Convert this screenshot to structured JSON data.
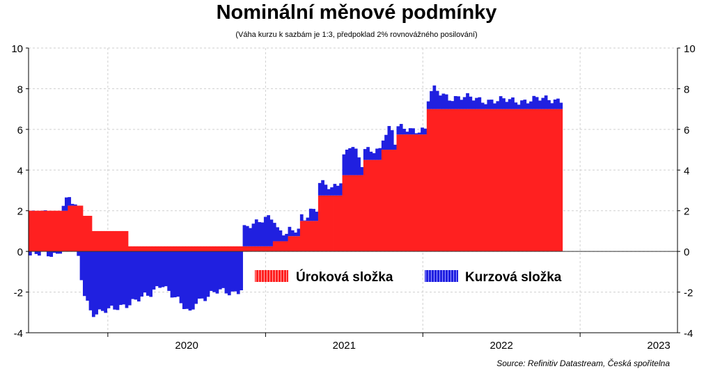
{
  "chart_data": {
    "type": "bar",
    "title": "Nominální měnové podmínky",
    "subtitle": "(Váha kurzu k sazbám je 1:3, předpoklad 2% rovnovážného posilování)",
    "source": "Source: Refinitiv Datastream, Česká spořitelna",
    "ylim": [
      -4,
      10
    ],
    "yticks": [
      -4,
      -2,
      0,
      2,
      4,
      6,
      8,
      10
    ],
    "x_range": [
      "2019-07-01",
      "2023-08-15"
    ],
    "x_tick_labels": [
      "2020",
      "2021",
      "2022",
      "2023"
    ],
    "grid": true,
    "legend_position": "inside-center",
    "colors": {
      "interest": "#ff2020",
      "exchange": "#2020e0"
    },
    "series": [
      {
        "name": "Úroková složka",
        "points": [
          [
            "2019-07-01",
            2.0
          ],
          [
            "2019-09-27",
            2.25
          ],
          [
            "2019-11-01",
            1.75
          ],
          [
            "2019-11-20",
            1.0
          ],
          [
            "2020-02-10",
            0.25
          ],
          [
            "2020-09-20",
            0.25
          ],
          [
            "2021-01-15",
            0.5
          ],
          [
            "2021-02-20",
            0.75
          ],
          [
            "2021-03-20",
            1.5
          ],
          [
            "2021-05-01",
            2.75
          ],
          [
            "2021-06-25",
            3.75
          ],
          [
            "2021-08-10",
            4.5
          ],
          [
            "2021-09-25",
            5.0
          ],
          [
            "2021-10-25",
            5.75
          ],
          [
            "2022-01-05",
            7.0
          ],
          [
            "2022-11-20",
            7.0
          ]
        ]
      },
      {
        "name": "Kurzová složka",
        "points": [
          [
            "2019-07-01",
            -0.2
          ],
          [
            "2019-09-01",
            -0.1
          ],
          [
            "2019-09-25",
            0.55
          ],
          [
            "2019-10-20",
            -0.3
          ],
          [
            "2019-11-01",
            -1.9
          ],
          [
            "2019-11-20",
            -3.0
          ],
          [
            "2020-01-10",
            -2.9
          ],
          [
            "2020-02-25",
            -2.4
          ],
          [
            "2020-04-05",
            -2.2
          ],
          [
            "2020-05-01",
            -1.5
          ],
          [
            "2020-06-10",
            -2.5
          ],
          [
            "2020-07-05",
            -3.1
          ],
          [
            "2020-07-20",
            -2.4
          ],
          [
            "2020-08-15",
            -2.2
          ],
          [
            "2020-09-10",
            -2.0
          ],
          [
            "2020-10-15",
            -2.0
          ],
          [
            "2020-11-02",
            -1.8
          ],
          [
            "2020-11-08",
            0.9
          ],
          [
            "2020-12-01",
            1.0
          ],
          [
            "2021-01-10",
            1.6
          ],
          [
            "2021-01-25",
            0.6
          ],
          [
            "2021-02-20",
            0.2
          ],
          [
            "2021-03-15",
            0.3
          ],
          [
            "2021-04-01",
            0.2
          ],
          [
            "2021-04-10",
            0.55
          ],
          [
            "2021-05-01",
            0.6
          ],
          [
            "2021-06-01",
            0.3
          ],
          [
            "2021-06-25",
            0.9
          ],
          [
            "2021-07-15",
            1.6
          ],
          [
            "2021-08-10",
            0.4
          ],
          [
            "2021-09-01",
            0.5
          ],
          [
            "2021-09-25",
            0.6
          ],
          [
            "2021-10-15",
            1.1
          ],
          [
            "2021-10-25",
            0.3
          ],
          [
            "2021-12-01",
            0.3
          ],
          [
            "2022-01-05",
            0.2
          ],
          [
            "2022-01-20",
            0.95
          ],
          [
            "2022-03-01",
            0.6
          ],
          [
            "2022-05-01",
            0.5
          ],
          [
            "2022-06-20",
            0.4
          ],
          [
            "2022-11-20",
            0.5
          ]
        ]
      }
    ]
  }
}
